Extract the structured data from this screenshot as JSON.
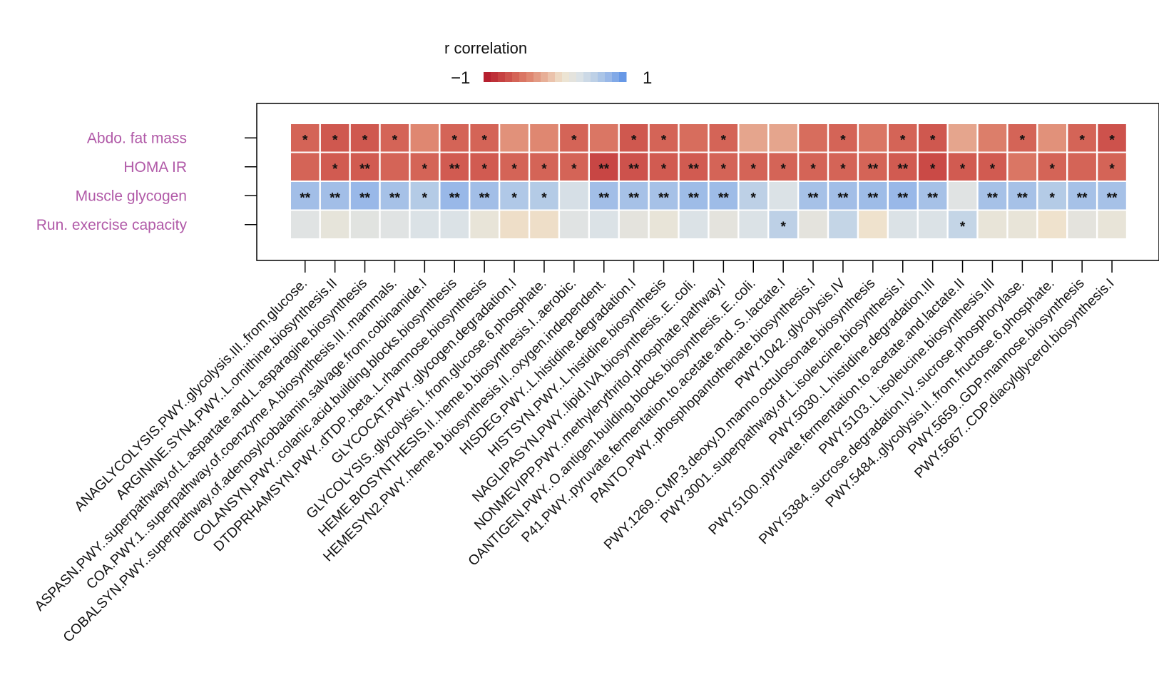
{
  "chart_data": {
    "type": "heatmap",
    "title": "",
    "legend": {
      "title": "r correlation",
      "min_label": "−1",
      "max_label": "1",
      "range": [
        -1,
        1
      ],
      "colors": [
        "#b2182b",
        "#c43c3e",
        "#d46356",
        "#e08a73",
        "#e9b79f",
        "#efe4cf",
        "#dde3e6",
        "#bcd0e6",
        "#94b5e8",
        "#5a8fe6"
      ]
    },
    "rows": [
      "Abdo. fat mass",
      "HOMA IR",
      "Muscle glycogen",
      "Run. exercise capacity"
    ],
    "row_label_color": "#b15aa8",
    "columns": [
      "ANAGLYCOLYSIS.PWY..glycolysis.III..from.glucose.",
      "ARGININE.SYN4.PWY..L.ornithine.biosynthesis.II",
      "ASPASN.PWY..superpathway.of.L.aspartate.and.L.asparagine.biosynthesis",
      "COA.PWY.1..superpathway.of.coenzyme.A.biosynthesis.III..mammals.",
      "COBALSYN.PWY..superpathway.of.adenosylcobalamin.salvage.from.cobinamide.I",
      "COLANSYN.PWY..colanic.acid.building.blocks.biosynthesis",
      "DTDPRHAMSYN.PWY..dTDP..beta..L.rhamnose.biosynthesis",
      "GLYCOCAT.PWY..glycogen.degradation.I",
      "GLYCOLYSIS..glycolysis.I..from.glucose.6.phosphate.",
      "HEME.BIOSYNTHESIS.II..heme.b.biosynthesis.I..aerobic.",
      "HEMESYN2.PWY..heme.b.biosynthesis.II..oxygen.independent.",
      "HISDEG.PWY..L.histidine.degradation.I",
      "HISTSYN.PWY..L.histidine.biosynthesis",
      "NAGLIPASYN.PWY..lipid.IVA.biosynthesis..E..coli.",
      "NONMEVIPP.PWY..methylerythritol.phosphate.pathway.I",
      "OANTIGEN.PWY..O.antigen.building.blocks.biosynthesis..E..coli.",
      "P41.PWY..pyruvate.fermentation.to.acetate.and..S..lactate.I",
      "PANTO.PWY..phosphopantothenate.biosynthesis.I",
      "PWY.1042..glycolysis.IV",
      "PWY.1269..CMP.3.deoxy.D.manno.octulosonate.biosynthesis",
      "PWY.3001..superpathway.of.L.isoleucine.biosynthesis.I",
      "PWY.5030..L.histidine.degradation.III",
      "PWY.5100..pyruvate.fermentation.to.acetate.and.lactate.II",
      "PWY.5103..L.isoleucine.biosynthesis.III",
      "PWY.5384..sucrose.degradation.IV..sucrose.phosphorylase.",
      "PWY.5484..glycolysis.II..from.fructose.6.phosphate.",
      "PWY.5659..GDP.mannose.biosynthesis",
      "PWY.5667..CDP.diacylglycerol.biosynthesis.I"
    ],
    "values": [
      [
        -0.55,
        -0.62,
        -0.62,
        -0.55,
        -0.35,
        -0.55,
        -0.55,
        -0.3,
        -0.35,
        -0.55,
        -0.45,
        -0.62,
        -0.55,
        -0.5,
        -0.55,
        -0.2,
        -0.2,
        -0.5,
        -0.55,
        -0.45,
        -0.55,
        -0.62,
        -0.2,
        -0.4,
        -0.55,
        -0.3,
        -0.55,
        -0.65
      ],
      [
        -0.55,
        -0.6,
        -0.6,
        -0.55,
        -0.55,
        -0.6,
        -0.6,
        -0.55,
        -0.55,
        -0.55,
        -0.72,
        -0.65,
        -0.6,
        -0.6,
        -0.55,
        -0.55,
        -0.55,
        -0.55,
        -0.55,
        -0.55,
        -0.6,
        -0.7,
        -0.6,
        -0.6,
        -0.45,
        -0.55,
        -0.55,
        -0.55
      ],
      [
        0.7,
        0.7,
        0.75,
        0.68,
        0.6,
        0.75,
        0.7,
        0.62,
        0.6,
        0.38,
        0.7,
        0.68,
        0.68,
        0.72,
        0.72,
        0.55,
        0.35,
        0.68,
        0.7,
        0.72,
        0.75,
        0.68,
        0.3,
        0.68,
        0.68,
        0.6,
        0.68,
        0.68
      ],
      [
        0.3,
        0.22,
        0.28,
        0.3,
        0.35,
        0.35,
        0.2,
        0.08,
        0.08,
        0.3,
        0.35,
        0.25,
        0.2,
        0.35,
        0.25,
        0.35,
        0.55,
        0.25,
        0.5,
        0.1,
        0.35,
        0.35,
        0.5,
        0.2,
        0.2,
        0.1,
        0.25,
        0.2
      ]
    ],
    "significance": [
      [
        "*",
        "*",
        "*",
        "*",
        "",
        "*",
        "*",
        "",
        "",
        "*",
        "",
        "*",
        "*",
        "",
        "*",
        "",
        "",
        "",
        "*",
        "",
        "*",
        "*",
        "",
        "",
        "*",
        "",
        "*",
        "*"
      ],
      [
        "",
        "*",
        "**",
        "",
        "*",
        "**",
        "*",
        "*",
        "*",
        "*",
        "**",
        "**",
        "*",
        "**",
        "*",
        "*",
        "*",
        "*",
        "*",
        "**",
        "**",
        "*",
        "*",
        "*",
        "",
        "*",
        "",
        "*"
      ],
      [
        "**",
        "**",
        "**",
        "**",
        "*",
        "**",
        "**",
        "*",
        "*",
        "",
        "**",
        "**",
        "**",
        "**",
        "**",
        "*",
        "",
        "**",
        "**",
        "**",
        "**",
        "**",
        "",
        "**",
        "**",
        "*",
        "**",
        "**"
      ],
      [
        "",
        "",
        "",
        "",
        "",
        "",
        "",
        "",
        "",
        "",
        "",
        "",
        "",
        "",
        "",
        "",
        "*",
        "",
        "",
        "",
        "",
        "",
        "*",
        "",
        "",
        "",
        "",
        ""
      ]
    ]
  }
}
